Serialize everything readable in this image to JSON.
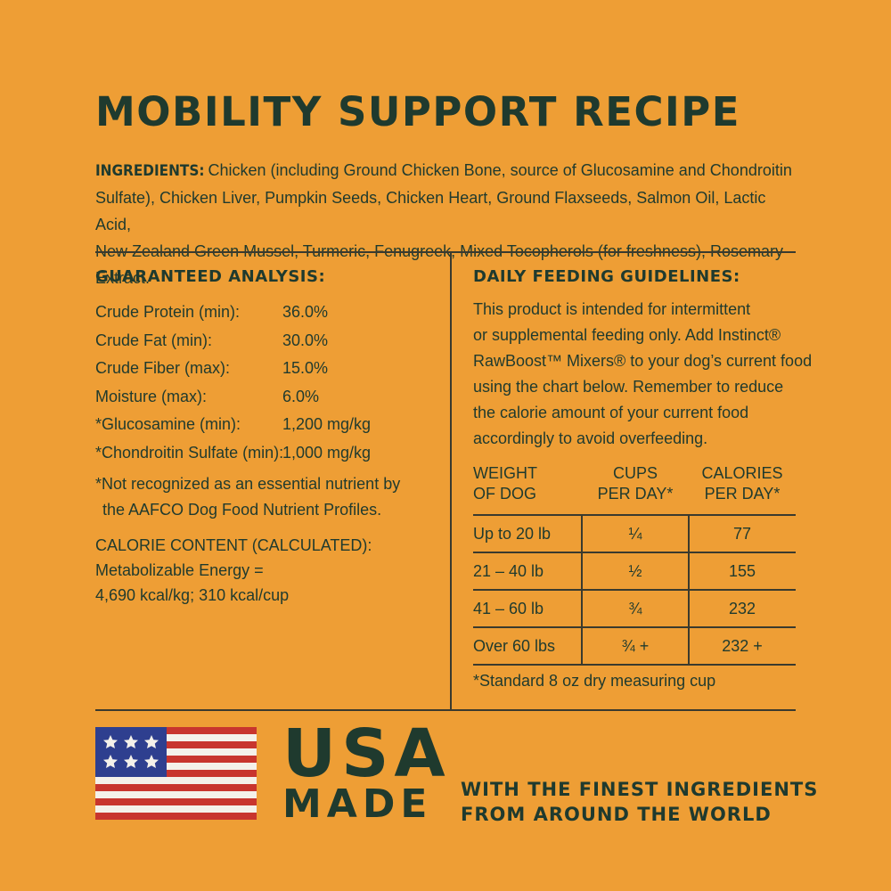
{
  "title": "MOBILITY SUPPORT RECIPE",
  "ingredients": {
    "label": "INGREDIENTS:",
    "lines": [
      "Chicken (including Ground Chicken Bone, source of Glucosamine and Chondroitin",
      "Sulfate), Chicken Liver, Pumpkin Seeds, Chicken Heart, Ground Flaxseeds, Salmon Oil, Lactic Acid,",
      "New Zealand Green Mussel, Turmeric, Fenugreek, Mixed Tocopherols (for freshness), Rosemary Extract."
    ]
  },
  "analysis": {
    "heading": "GUARANTEED ANALYSIS:",
    "rows": [
      {
        "name": "Crude Protein (min):",
        "value": "36.0%"
      },
      {
        "name": "Crude Fat (min):",
        "value": "30.0%"
      },
      {
        "name": "Crude Fiber (max):",
        "value": "15.0%"
      },
      {
        "name": "Moisture (max):",
        "value": "6.0%"
      },
      {
        "name": "*Glucosamine (min):",
        "value": "1,200 mg/kg"
      },
      {
        "name": "*Chondroitin Sulfate (min):",
        "value": "1,000 mg/kg"
      }
    ],
    "footnote": [
      "*Not recognized as an essential nutrient by",
      "the AAFCO Dog Food Nutrient Profiles."
    ],
    "calorie": [
      "CALORIE CONTENT (CALCULATED):",
      "Metabolizable Energy =",
      "4,690 kcal/kg; 310 kcal/cup"
    ]
  },
  "feeding": {
    "heading": "DAILY FEEDING GUIDELINES:",
    "text": [
      "This product is intended for intermittent",
      "or supplemental feeding only. Add Instinct®",
      "RawBoost™ Mixers® to your dog’s current food",
      "using the chart below. Remember to reduce",
      "the calorie amount of your current food",
      "accordingly to avoid overfeeding."
    ],
    "headers": [
      [
        "WEIGHT",
        "OF DOG"
      ],
      [
        "CUPS",
        "PER DAY*"
      ],
      [
        "CALORIES",
        "PER DAY*"
      ]
    ],
    "rows": [
      {
        "weight": "Up to 20 lb",
        "cups": "¼",
        "calories": "77"
      },
      {
        "weight": "21 – 40 lb",
        "cups": "½",
        "calories": "155"
      },
      {
        "weight": "41 – 60 lb",
        "cups": "¾",
        "calories": "232"
      },
      {
        "weight": "Over 60 lbs",
        "cups": "¾ +",
        "calories": "232 +"
      }
    ],
    "note": "*Standard 8 oz dry measuring cup"
  },
  "footer": {
    "usa": "USA",
    "made": "MADE",
    "tagline": [
      "WITH THE FINEST INGREDIENTS",
      "FROM AROUND THE WORLD"
    ]
  },
  "colors": {
    "background": "#EE9E35",
    "text": "#1F3A2E",
    "flag_blue": "#2E3F8F",
    "flag_red": "#C8352E",
    "flag_white": "#F4F1EA"
  }
}
